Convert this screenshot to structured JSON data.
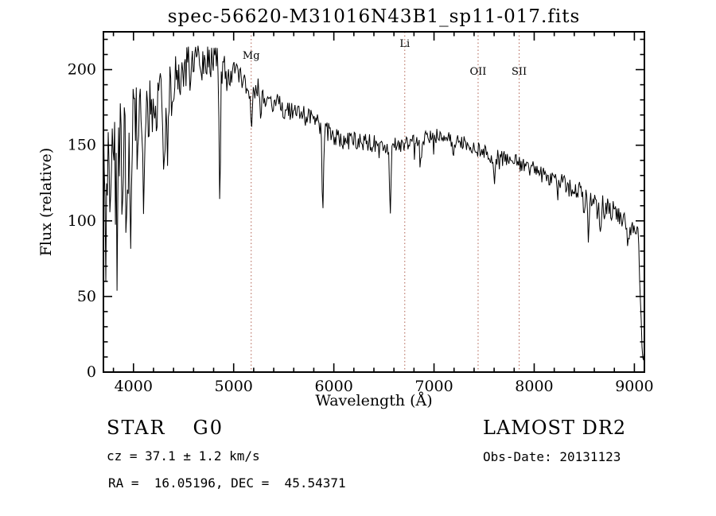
{
  "chart_data": {
    "type": "line",
    "title": "spec-56620-M31016N43B1_sp11-017.fits",
    "xlabel": "Wavelength (Å)",
    "ylabel": "Flux (relative)",
    "xlim": [
      3700,
      9100
    ],
    "ylim": [
      0,
      225
    ],
    "xticks": [
      4000,
      5000,
      6000,
      7000,
      8000,
      9000
    ],
    "yticks": [
      0,
      50,
      100,
      150,
      200
    ],
    "x_minor_step": 200,
    "y_minor_step": 10,
    "grid": false,
    "legend": "none",
    "line_color": "#000000",
    "frame_color": "#000000",
    "marker_line_color": "#b06050",
    "spectral_markers": [
      {
        "label": "Mg",
        "wavelength": 5175,
        "label_y": 74
      },
      {
        "label": "Li",
        "wavelength": 6708,
        "label_y": 59
      },
      {
        "label": "OII",
        "wavelength": 7440,
        "label_y": 94
      },
      {
        "label": "SII",
        "wavelength": 7850,
        "label_y": 94
      }
    ],
    "sample_step": 8,
    "noise_seed": 12345,
    "continuum": [
      [
        3700,
        142
      ],
      [
        3750,
        138
      ],
      [
        3800,
        150
      ],
      [
        3850,
        155
      ],
      [
        3900,
        160
      ],
      [
        3950,
        163
      ],
      [
        4000,
        168
      ],
      [
        4050,
        170
      ],
      [
        4100,
        172
      ],
      [
        4150,
        174
      ],
      [
        4200,
        178
      ],
      [
        4250,
        181
      ],
      [
        4300,
        185
      ],
      [
        4350,
        189
      ],
      [
        4400,
        194
      ],
      [
        4450,
        197
      ],
      [
        4500,
        200
      ],
      [
        4550,
        204
      ],
      [
        4600,
        206
      ],
      [
        4650,
        207
      ],
      [
        4700,
        207
      ],
      [
        4750,
        206
      ],
      [
        4800,
        205
      ],
      [
        4850,
        204
      ],
      [
        4900,
        201
      ],
      [
        4950,
        199
      ],
      [
        5000,
        197
      ],
      [
        5100,
        193
      ],
      [
        5200,
        188
      ],
      [
        5300,
        184
      ],
      [
        5400,
        179
      ],
      [
        5500,
        175
      ],
      [
        5600,
        172
      ],
      [
        5700,
        170
      ],
      [
        5800,
        167
      ],
      [
        5900,
        161
      ],
      [
        6000,
        156
      ],
      [
        6100,
        153
      ],
      [
        6200,
        153
      ],
      [
        6300,
        152
      ],
      [
        6400,
        151
      ],
      [
        6500,
        150
      ],
      [
        6600,
        150
      ],
      [
        6700,
        151
      ],
      [
        6800,
        152
      ],
      [
        6900,
        154
      ],
      [
        7000,
        156
      ],
      [
        7100,
        156
      ],
      [
        7200,
        154
      ],
      [
        7300,
        151
      ],
      [
        7400,
        148
      ],
      [
        7500,
        146
      ],
      [
        7600,
        143
      ],
      [
        7700,
        141
      ],
      [
        7800,
        139
      ],
      [
        7900,
        137
      ],
      [
        8000,
        134
      ],
      [
        8100,
        131
      ],
      [
        8200,
        128
      ],
      [
        8300,
        125
      ],
      [
        8400,
        122
      ],
      [
        8500,
        118
      ],
      [
        8600,
        114
      ],
      [
        8700,
        110
      ],
      [
        8800,
        106
      ],
      [
        8900,
        102
      ],
      [
        9000,
        98
      ],
      [
        9030,
        95
      ],
      [
        9050,
        70
      ],
      [
        9065,
        40
      ],
      [
        9080,
        15
      ],
      [
        9100,
        12
      ]
    ],
    "noise_profile": [
      [
        3700,
        34
      ],
      [
        3800,
        30
      ],
      [
        3900,
        27
      ],
      [
        4000,
        24
      ],
      [
        4100,
        21
      ],
      [
        4200,
        18
      ],
      [
        4300,
        16
      ],
      [
        4500,
        13
      ],
      [
        4700,
        12
      ],
      [
        5000,
        9
      ],
      [
        5300,
        8
      ],
      [
        5600,
        7
      ],
      [
        6000,
        6.5
      ],
      [
        6500,
        5.5
      ],
      [
        7000,
        5
      ],
      [
        7500,
        5
      ],
      [
        8000,
        5.5
      ],
      [
        8500,
        6.5
      ],
      [
        9000,
        7.5
      ]
    ],
    "absorption_lines": [
      {
        "center": 3727,
        "depth": 55,
        "width": 9
      },
      {
        "center": 3770,
        "depth": 45,
        "width": 8
      },
      {
        "center": 3835,
        "depth": 48,
        "width": 8
      },
      {
        "center": 3889,
        "depth": 50,
        "width": 8
      },
      {
        "center": 3933,
        "depth": 72,
        "width": 9
      },
      {
        "center": 3968,
        "depth": 65,
        "width": 9
      },
      {
        "center": 4045,
        "depth": 30,
        "width": 7
      },
      {
        "center": 4101,
        "depth": 48,
        "width": 8
      },
      {
        "center": 4227,
        "depth": 32,
        "width": 7
      },
      {
        "center": 4308,
        "depth": 58,
        "width": 9
      },
      {
        "center": 4340,
        "depth": 42,
        "width": 8
      },
      {
        "center": 4383,
        "depth": 28,
        "width": 7
      },
      {
        "center": 4861,
        "depth": 80,
        "width": 8
      },
      {
        "center": 5175,
        "depth": 26,
        "width": 11
      },
      {
        "center": 5270,
        "depth": 15,
        "width": 8
      },
      {
        "center": 5890,
        "depth": 48,
        "width": 9
      },
      {
        "center": 6563,
        "depth": 44,
        "width": 8
      },
      {
        "center": 6870,
        "depth": 12,
        "width": 8
      },
      {
        "center": 7190,
        "depth": 8,
        "width": 9
      },
      {
        "center": 7600,
        "depth": 14,
        "width": 10
      },
      {
        "center": 8230,
        "depth": 10,
        "width": 9
      },
      {
        "center": 8498,
        "depth": 16,
        "width": 7
      },
      {
        "center": 8542,
        "depth": 26,
        "width": 7
      },
      {
        "center": 8662,
        "depth": 24,
        "width": 7
      },
      {
        "center": 8940,
        "depth": 14,
        "width": 9
      }
    ]
  },
  "annotations": {
    "object_type": "STAR",
    "subclass": "G0",
    "cz_line": "cz = 37.1 ± 1.2 km/s",
    "radec_line": "RA =  16.05196, DEC =  45.54371",
    "survey": "LAMOST DR2",
    "obs_date_line": "Obs-Date: 20131123"
  }
}
